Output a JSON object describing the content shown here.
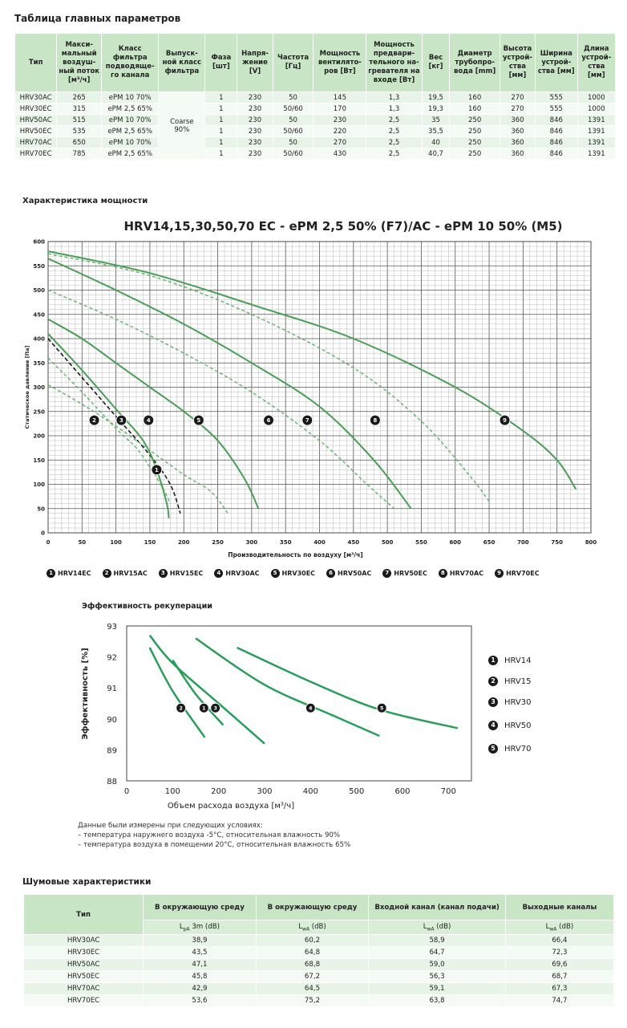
{
  "main_title": "Таблица главных параметров",
  "params_table": {
    "headers": [
      "Тип",
      "Макси-мальный воздуш-ный поток [м³/ч]",
      "Класс фильтра подводяще-го канала",
      "Выпуск-ной класс фильтра",
      "Фаза [шт]",
      "Напря-жение [V]",
      "Частота [Гц]",
      "Мощность вентилято-ров [Вт]",
      "Мощность предвари-тельного на-гревателя на входе [Вт]",
      "Вес [кг]",
      "Диаметр трубопро-вода [mm]",
      "Высота устрой-ства [мм]",
      "Ширина устрой-ства [мм]",
      "Длина устрой-ства [мм]"
    ],
    "outlet_filter": "Coarse 90%",
    "rows": [
      [
        "HRV30AC",
        "265",
        "ePM 10 70%",
        "1",
        "230",
        "50",
        "145",
        "1,3",
        "19,5",
        "160",
        "270",
        "555",
        "1000"
      ],
      [
        "HRV30EC",
        "315",
        "ePM 2,5 65%",
        "1",
        "230",
        "50/60",
        "170",
        "1,3",
        "19,3",
        "160",
        "270",
        "555",
        "1000"
      ],
      [
        "HRV50AC",
        "515",
        "ePM 10 70%",
        "1",
        "230",
        "50",
        "230",
        "2,5",
        "35",
        "250",
        "360",
        "846",
        "1391"
      ],
      [
        "HRV50EC",
        "535",
        "ePM 2,5 65%",
        "1",
        "230",
        "50/60",
        "220",
        "2,5",
        "35,5",
        "250",
        "360",
        "846",
        "1391"
      ],
      [
        "HRV70AC",
        "650",
        "ePM 10 70%",
        "1",
        "230",
        "50",
        "270",
        "2,5",
        "40",
        "250",
        "360",
        "846",
        "1391"
      ],
      [
        "HRV70EC",
        "785",
        "ePM 2,5 65%",
        "1",
        "230",
        "50/60",
        "430",
        "2,5",
        "40,7",
        "250",
        "360",
        "846",
        "1391"
      ]
    ]
  },
  "power_section_title": "Характеристика мощности",
  "power_chart": {
    "title": "HRV14,15,30,50,70 EC - ePM 2,5 50% (F7)/AC - ePM 10 50% (M5)",
    "xlabel": "Производительность по воздуху [м³/ч]",
    "ylabel": "Статическое давление [Па]",
    "legend": [
      {
        "num": "1",
        "label": "HRV14EC"
      },
      {
        "num": "2",
        "label": "HRV15AC"
      },
      {
        "num": "3",
        "label": "HRV15EC"
      },
      {
        "num": "4",
        "label": "HRV30AC"
      },
      {
        "num": "5",
        "label": "HRV30EC"
      },
      {
        "num": "6",
        "label": "HRV50AC"
      },
      {
        "num": "7",
        "label": "HRV50EC"
      },
      {
        "num": "8",
        "label": "HRV70AC"
      },
      {
        "num": "9",
        "label": "HRV70EC"
      }
    ]
  },
  "efficiency_section_title": "Эффективность рекуперации",
  "efficiency_chart": {
    "xlabel": "Объем расхода воздуха [м³/ч]",
    "ylabel": "Эффективность [%]",
    "legend": [
      {
        "num": "1",
        "label": "HRV14"
      },
      {
        "num": "2",
        "label": "HRV15"
      },
      {
        "num": "3",
        "label": "HRV30"
      },
      {
        "num": "4",
        "label": "HRV50"
      },
      {
        "num": "5",
        "label": "HRV70"
      }
    ]
  },
  "conditions": {
    "line1": "Данные были измерены при следующих условиях:",
    "line2": "– температура наружнего воздуха -5°C, относительная влажность 90%",
    "line3": "– температура воздуха в помещении 20°C, относительная влажность 65%"
  },
  "noise_section_title": "Шумовые характеристики",
  "noise_table": {
    "col_type": "Тип",
    "headers": [
      "В окружающую среду",
      "В окружающую среду",
      "Входной канал (канал подачи)",
      "Выходные каналы"
    ],
    "subheaders": [
      "LpA 3m (dB)",
      "LwA (dB)",
      "LwA (dB)",
      "LwA (dB)"
    ],
    "rows": [
      [
        "HRV30AC",
        "38,9",
        "60,2",
        "58,9",
        "66,4"
      ],
      [
        "HRV30EC",
        "43,5",
        "64,8",
        "64,7",
        "72,3"
      ],
      [
        "HRV50AC",
        "47,1",
        "68,8",
        "59,0",
        "69,6"
      ],
      [
        "HRV50EC",
        "45,8",
        "67,2",
        "56,3",
        "68,7"
      ],
      [
        "HRV70AC",
        "42,9",
        "64,5",
        "59,1",
        "67,3"
      ],
      [
        "HRV70EC",
        "53,6",
        "75,2",
        "63,8",
        "74,7"
      ]
    ]
  },
  "chart_data": [
    {
      "type": "line",
      "title": "HRV14,15,30,50,70 EC - ePM 2,5 50% (F7)/AC - ePM 10 50% (M5)",
      "xlabel": "Производительность по воздуху [м³/ч]",
      "ylabel": "Статическое давление [Па]",
      "xlim": [
        0,
        800
      ],
      "ylim": [
        0,
        600
      ],
      "xticks": [
        0,
        50,
        100,
        150,
        200,
        250,
        300,
        350,
        400,
        450,
        500,
        550,
        600,
        650,
        700,
        750,
        800
      ],
      "yticks": [
        0,
        50,
        100,
        150,
        200,
        250,
        300,
        350,
        400,
        450,
        500,
        550,
        600
      ],
      "grid": true,
      "series": [
        {
          "name": "HRV14EC",
          "style": "dashed-black",
          "label_at": [
            160,
            130
          ],
          "points": [
            [
              0,
              400
            ],
            [
              50,
              320
            ],
            [
              100,
              240
            ],
            [
              150,
              160
            ],
            [
              180,
              100
            ],
            [
              195,
              40
            ]
          ]
        },
        {
          "name": "HRV15AC",
          "style": "dashed-green",
          "label_at": [
            68,
            232
          ],
          "points": [
            [
              0,
              360
            ],
            [
              50,
              290
            ],
            [
              100,
              215
            ],
            [
              130,
              175
            ],
            [
              150,
              135
            ],
            [
              170,
              90
            ],
            [
              180,
              60
            ]
          ]
        },
        {
          "name": "HRV15EC",
          "style": "solid-green",
          "label_at": [
            108,
            232
          ],
          "points": [
            [
              0,
              410
            ],
            [
              50,
              335
            ],
            [
              100,
              255
            ],
            [
              140,
              190
            ],
            [
              160,
              130
            ],
            [
              175,
              60
            ],
            [
              178,
              30
            ]
          ]
        },
        {
          "name": "HRV30AC",
          "style": "dashed-green",
          "label_at": [
            148,
            232
          ],
          "points": [
            [
              0,
              305
            ],
            [
              50,
              265
            ],
            [
              100,
              220
            ],
            [
              150,
              170
            ],
            [
              200,
              120
            ],
            [
              240,
              85
            ],
            [
              265,
              40
            ]
          ]
        },
        {
          "name": "HRV30EC",
          "style": "solid-green",
          "label_at": [
            222,
            232
          ],
          "points": [
            [
              0,
              440
            ],
            [
              50,
              400
            ],
            [
              100,
              350
            ],
            [
              150,
              300
            ],
            [
              200,
              250
            ],
            [
              250,
              190
            ],
            [
              290,
              110
            ],
            [
              310,
              50
            ]
          ]
        },
        {
          "name": "HRV50AC",
          "style": "dashed-green",
          "label_at": [
            325,
            232
          ],
          "points": [
            [
              0,
              500
            ],
            [
              100,
              440
            ],
            [
              200,
              370
            ],
            [
              300,
              290
            ],
            [
              400,
              190
            ],
            [
              470,
              100
            ],
            [
              510,
              50
            ]
          ]
        },
        {
          "name": "HRV50EC",
          "style": "solid-green",
          "label_at": [
            382,
            232
          ],
          "points": [
            [
              0,
              565
            ],
            [
              100,
              500
            ],
            [
              200,
              430
            ],
            [
              300,
              350
            ],
            [
              400,
              260
            ],
            [
              480,
              150
            ],
            [
              535,
              50
            ]
          ]
        },
        {
          "name": "HRV70AC",
          "style": "dashed-green",
          "label_at": [
            482,
            232
          ],
          "points": [
            [
              0,
              575
            ],
            [
              150,
              530
            ],
            [
              300,
              450
            ],
            [
              450,
              340
            ],
            [
              550,
              230
            ],
            [
              620,
              120
            ],
            [
              650,
              65
            ]
          ]
        },
        {
          "name": "HRV70EC",
          "style": "solid-green",
          "label_at": [
            673,
            232
          ],
          "points": [
            [
              0,
              580
            ],
            [
              150,
              535
            ],
            [
              300,
              470
            ],
            [
              450,
              400
            ],
            [
              600,
              300
            ],
            [
              700,
              210
            ],
            [
              750,
              150
            ],
            [
              778,
              90
            ]
          ]
        }
      ]
    },
    {
      "type": "line",
      "title": "",
      "xlabel": "Объем расхода воздуха [м³/ч]",
      "ylabel": "Эффективность [%]",
      "xlim": [
        0,
        750
      ],
      "ylim": [
        88,
        93
      ],
      "xticks": [
        0,
        100,
        200,
        300,
        400,
        500,
        600,
        700
      ],
      "yticks": [
        88,
        89,
        90,
        91,
        92,
        93
      ],
      "grid": false,
      "series": [
        {
          "name": "HRV14",
          "label_at": [
            168,
            90.35
          ],
          "points": [
            [
              100,
              91.9
            ],
            [
              150,
              90.8
            ],
            [
              210,
              89.8
            ]
          ]
        },
        {
          "name": "HRV15",
          "label_at": [
            118,
            90.35
          ],
          "points": [
            [
              50,
              92.3
            ],
            [
              100,
              90.9
            ],
            [
              170,
              89.4
            ]
          ]
        },
        {
          "name": "HRV30",
          "label_at": [
            193,
            90.35
          ],
          "points": [
            [
              50,
              92.7
            ],
            [
              100,
              91.8
            ],
            [
              200,
              90.5
            ],
            [
              300,
              89.2
            ]
          ]
        },
        {
          "name": "HRV50",
          "label_at": [
            400,
            90.35
          ],
          "points": [
            [
              150,
              92.6
            ],
            [
              300,
              91.1
            ],
            [
              450,
              90.1
            ],
            [
              550,
              89.45
            ]
          ]
        },
        {
          "name": "HRV70",
          "label_at": [
            555,
            90.35
          ],
          "points": [
            [
              240,
              92.3
            ],
            [
              400,
              91.2
            ],
            [
              550,
              90.3
            ],
            [
              720,
              89.7
            ]
          ]
        }
      ]
    }
  ]
}
